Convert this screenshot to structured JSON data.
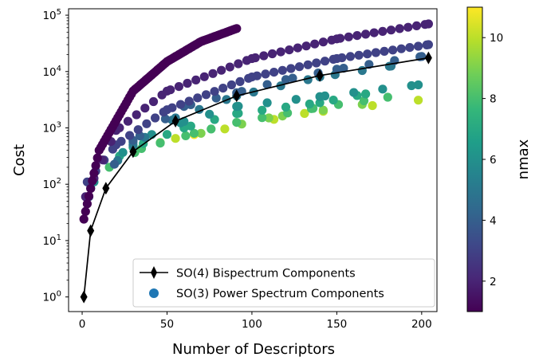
{
  "chart_data": {
    "type": "scatter",
    "xlabel": "Number of Descriptors",
    "ylabel": "Cost",
    "xlim": [
      -8,
      209
    ],
    "ylim": [
      0.55,
      130000
    ],
    "yscale": "log",
    "xticks": [
      {
        "value": 0,
        "label": "0"
      },
      {
        "value": 50,
        "label": "50"
      },
      {
        "value": 100,
        "label": "100"
      },
      {
        "value": 150,
        "label": "150"
      },
      {
        "value": 200,
        "label": "200"
      }
    ],
    "yticks": [
      {
        "value": 1,
        "base": "10",
        "exp": "0"
      },
      {
        "value": 10,
        "base": "10",
        "exp": "1"
      },
      {
        "value": 100,
        "base": "10",
        "exp": "2"
      },
      {
        "value": 1000,
        "base": "10",
        "exp": "3"
      },
      {
        "value": 10000,
        "base": "10",
        "exp": "4"
      },
      {
        "value": 100000,
        "base": "10",
        "exp": "5"
      }
    ],
    "legend_position": "lower right",
    "colorbar": {
      "label": "nmax",
      "range": [
        1,
        11
      ],
      "ticks": [
        {
          "value": 2,
          "label": "2"
        },
        {
          "value": 4,
          "label": "4"
        },
        {
          "value": 6,
          "label": "6"
        },
        {
          "value": 8,
          "label": "8"
        },
        {
          "value": 10,
          "label": "10"
        }
      ],
      "colormap": "viridis",
      "stops": [
        "#440154",
        "#482878",
        "#3e4989",
        "#31688e",
        "#26828e",
        "#1f9e89",
        "#35b779",
        "#6ece58",
        "#b5de2b",
        "#fde725"
      ]
    },
    "series": [
      {
        "name": "SO(4) Bispectrum Components",
        "kind": "line-marker",
        "color": "#000000",
        "marker": "diamond",
        "points": [
          {
            "x": 1,
            "y": 1
          },
          {
            "x": 5,
            "y": 15
          },
          {
            "x": 14,
            "y": 85
          },
          {
            "x": 30,
            "y": 380
          },
          {
            "x": 55,
            "y": 1320
          },
          {
            "x": 91,
            "y": 3700
          },
          {
            "x": 140,
            "y": 8500
          },
          {
            "x": 204,
            "y": 17500
          }
        ]
      },
      {
        "name": "SO(3) Power Spectrum Components",
        "kind": "scatter",
        "legend_color": "#1f77b4",
        "groups": [
          {
            "nmax": 1,
            "x_start": 1,
            "x_end": 91,
            "y_at": [
              {
                "x": 1,
                "y": 24
              },
              {
                "x": 10,
                "y": 400
              },
              {
                "x": 30,
                "y": 4500
              },
              {
                "x": 50,
                "y": 15000
              },
              {
                "x": 70,
                "y": 34000
              },
              {
                "x": 91,
                "y": 58000
              }
            ]
          },
          {
            "nmax": 2,
            "x_start": 2,
            "x_end": 204,
            "y_at": [
              {
                "x": 2,
                "y": 60
              },
              {
                "x": 20,
                "y": 900
              },
              {
                "x": 50,
                "y": 4500
              },
              {
                "x": 100,
                "y": 17000
              },
              {
                "x": 150,
                "y": 38000
              },
              {
                "x": 204,
                "y": 70000
              }
            ]
          },
          {
            "nmax": 3,
            "x_start": 3,
            "x_end": 204,
            "y_at": [
              {
                "x": 3,
                "y": 110
              },
              {
                "x": 20,
                "y": 500
              },
              {
                "x": 50,
                "y": 2100
              },
              {
                "x": 100,
                "y": 8000
              },
              {
                "x": 150,
                "y": 17000
              },
              {
                "x": 204,
                "y": 30000
              }
            ]
          },
          {
            "nmax": 4,
            "x_start": 4,
            "x_end": 200,
            "y_at": [
              {
                "x": 4,
                "y": 60
              },
              {
                "x": 30,
                "y": 600
              },
              {
                "x": 60,
                "y": 2400
              },
              {
                "x": 91,
                "y": 4200
              },
              {
                "x": 120,
                "y": 7200
              },
              {
                "x": 150,
                "y": 11000
              },
              {
                "x": 200,
                "y": 18500
              }
            ]
          },
          {
            "nmax": 5,
            "x_start": 5,
            "x_end": 182,
            "y_at": [
              {
                "x": 5,
                "y": 85
              },
              {
                "x": 30,
                "y": 500
              },
              {
                "x": 55,
                "y": 1500
              },
              {
                "x": 91,
                "y": 3700
              },
              {
                "x": 140,
                "y": 8000
              },
              {
                "x": 182,
                "y": 12500
              }
            ]
          },
          {
            "nmax": 6,
            "x_start": 7,
            "x_end": 198,
            "y_at": [
              {
                "x": 7,
                "y": 110
              },
              {
                "x": 30,
                "y": 560
              },
              {
                "x": 60,
                "y": 1300
              },
              {
                "x": 91,
                "y": 2400
              },
              {
                "x": 140,
                "y": 3600
              },
              {
                "x": 198,
                "y": 5800
              }
            ]
          },
          {
            "nmax": 7,
            "x_start": 8,
            "x_end": 167,
            "y_at": [
              {
                "x": 8,
                "y": 170
              },
              {
                "x": 30,
                "y": 450
              },
              {
                "x": 60,
                "y": 1000
              },
              {
                "x": 91,
                "y": 1800
              },
              {
                "x": 140,
                "y": 2800
              },
              {
                "x": 167,
                "y": 4000
              }
            ]
          },
          {
            "nmax": 8,
            "x_start": 16,
            "x_end": 180,
            "y_at": [
              {
                "x": 16,
                "y": 200
              },
              {
                "x": 35,
                "y": 430
              },
              {
                "x": 66,
                "y": 800
              },
              {
                "x": 91,
                "y": 1250
              },
              {
                "x": 135,
                "y": 2200
              },
              {
                "x": 180,
                "y": 3500
              }
            ]
          },
          {
            "nmax": 9,
            "x_start": 46,
            "x_end": 165,
            "y_at": [
              {
                "x": 46,
                "y": 550
              },
              {
                "x": 110,
                "y": 1500
              },
              {
                "x": 165,
                "y": 2600
              }
            ]
          },
          {
            "nmax": 10,
            "x_start": 55,
            "x_end": 198,
            "y_at": [
              {
                "x": 55,
                "y": 650
              },
              {
                "x": 131,
                "y": 1800
              },
              {
                "x": 198,
                "y": 3100
              }
            ]
          },
          {
            "nmax": 11,
            "x_start": 66,
            "x_end": 66,
            "y_at": [
              {
                "x": 66,
                "y": 760
              }
            ]
          }
        ]
      }
    ]
  }
}
